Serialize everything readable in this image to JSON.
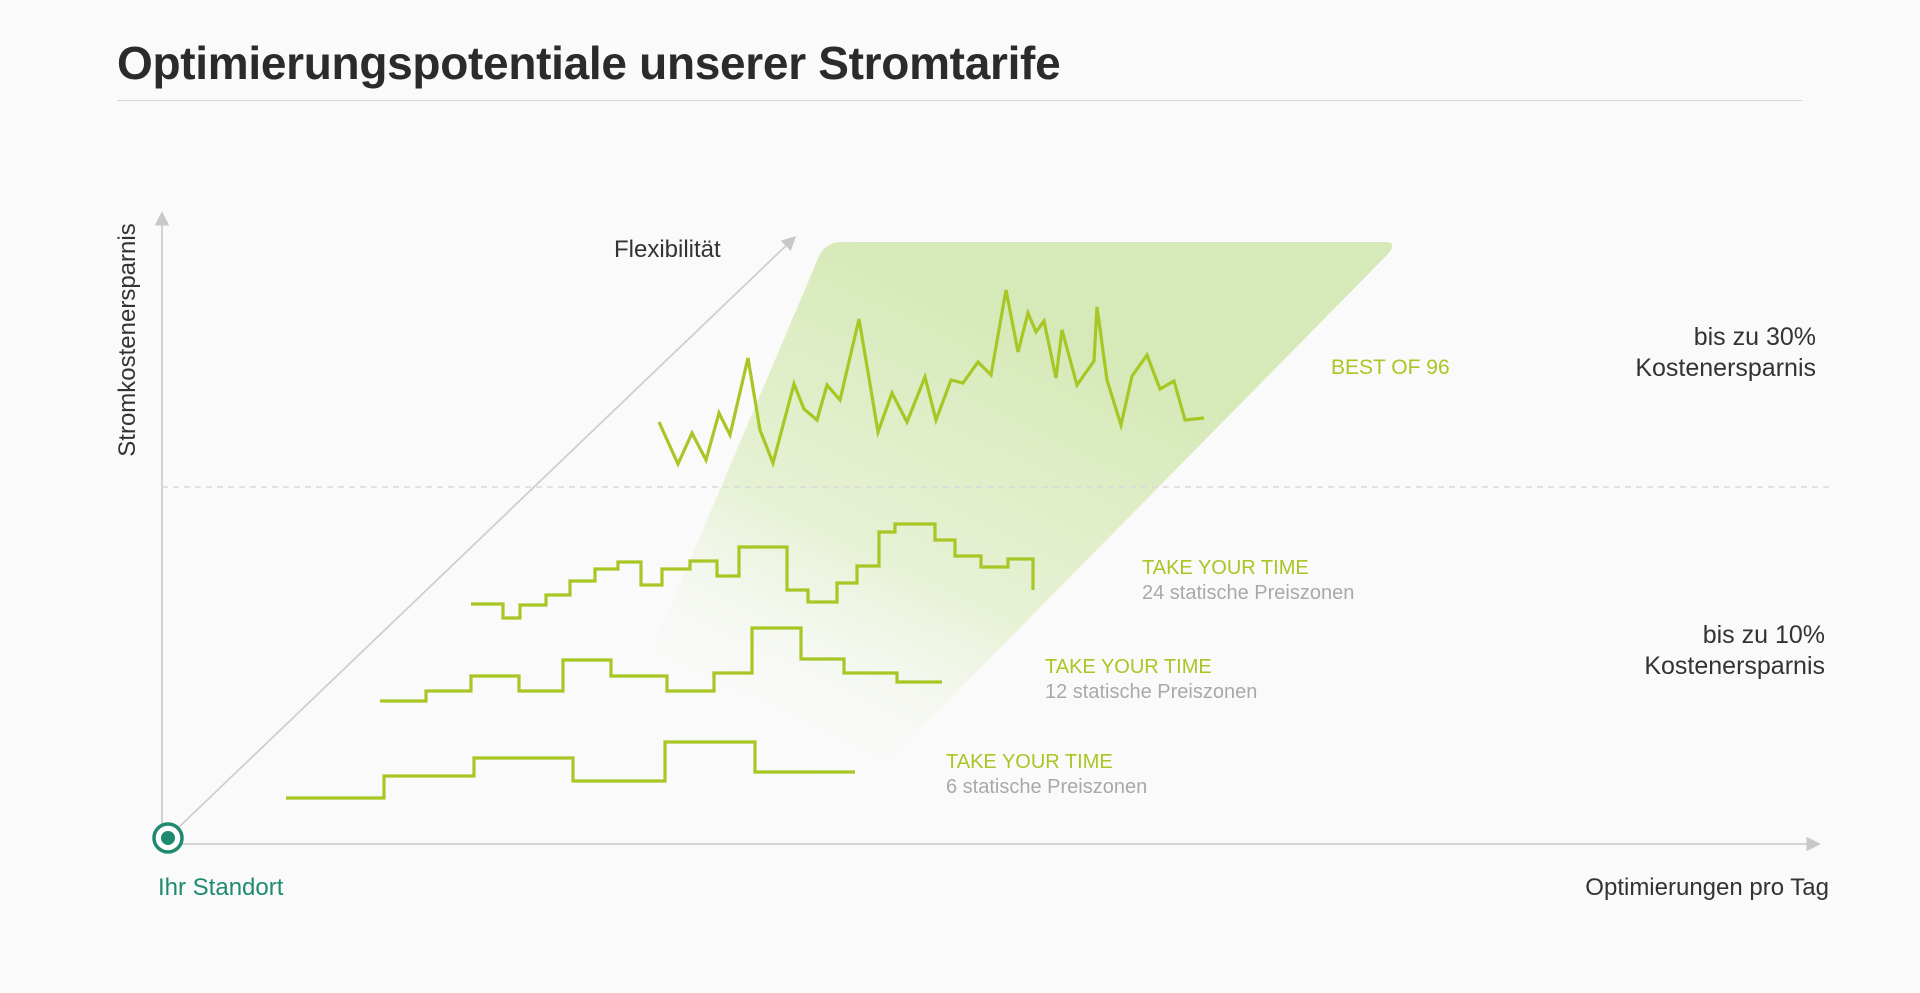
{
  "title": "Optimierungspotentiale unserer Stromtarife",
  "axes": {
    "y_label": "Stromkostenersparnis",
    "x_label": "Optimierungen pro Tag",
    "diagonal_label": "Flexibilität",
    "origin_label": "Ihr Standort"
  },
  "savings": {
    "high": {
      "line1": "bis zu 30%",
      "line2": "Kostenersparnis"
    },
    "low": {
      "line1": "bis zu 10%",
      "line2": "Kostenersparnis"
    }
  },
  "tariffs": [
    {
      "id": "best96",
      "name": "BEST OF 96",
      "subtitle": ""
    },
    {
      "id": "tyt24",
      "name": "TAKE YOUR TIME",
      "subtitle": "24 statische Preiszonen"
    },
    {
      "id": "tyt12",
      "name": "TAKE YOUR TIME",
      "subtitle": "12 statische Preiszonen"
    },
    {
      "id": "tyt6",
      "name": "TAKE YOUR TIME",
      "subtitle": "6 statische Preiszonen"
    }
  ],
  "colors": {
    "accent_green": "#a8c624",
    "origin_teal": "#1f8a6f",
    "axis_grey": "#cfcfcf",
    "text_dark": "#2b2b2b",
    "text_muted": "#a9a9a9"
  }
}
